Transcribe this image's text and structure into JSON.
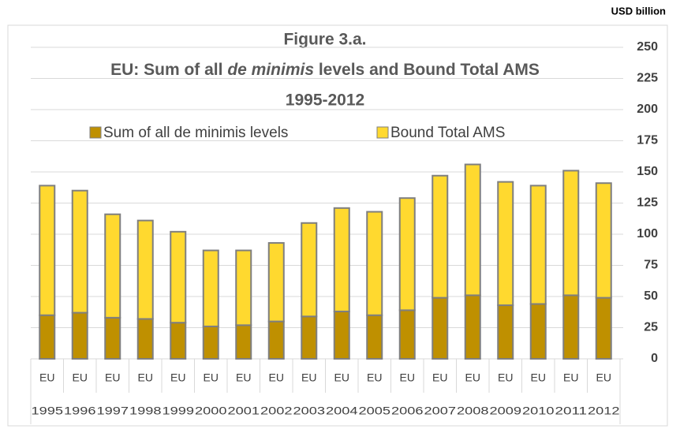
{
  "chart_data": {
    "type": "stacked_bar",
    "title": [
      "Figure 3.a.",
      [
        "EU: Sum of all ",
        "de minimis",
        " levels and Bound Total AMS"
      ],
      "1995-2012"
    ],
    "unit_label": "USD billion",
    "categories": [
      "1995",
      "1996",
      "1997",
      "1998",
      "1999",
      "2000",
      "2001",
      "2002",
      "2003",
      "2004",
      "2005",
      "2006",
      "2007",
      "2008",
      "2009",
      "2010",
      "2011",
      "2012"
    ],
    "category_groups": [
      "EU",
      "EU",
      "EU",
      "EU",
      "EU",
      "EU",
      "EU",
      "EU",
      "EU",
      "EU",
      "EU",
      "EU",
      "EU",
      "EU",
      "EU",
      "EU",
      "EU",
      "EU"
    ],
    "series": [
      {
        "name": "Sum of all de minimis levels",
        "color": "#bf9000",
        "values": [
          35,
          37,
          33,
          32,
          29,
          26,
          27,
          30,
          34,
          38,
          35,
          39,
          49,
          51,
          43,
          44,
          51,
          49
        ]
      },
      {
        "name": "Bound Total AMS",
        "color": "#ffd92f",
        "values": [
          104,
          98,
          83,
          79,
          73,
          61,
          60,
          63,
          75,
          83,
          83,
          90,
          98,
          105,
          99,
          95,
          100,
          92
        ]
      }
    ],
    "ylim": [
      0,
      250
    ],
    "yticks": [
      0,
      25,
      50,
      75,
      100,
      125,
      150,
      175,
      200,
      225,
      250
    ],
    "grid": true
  }
}
